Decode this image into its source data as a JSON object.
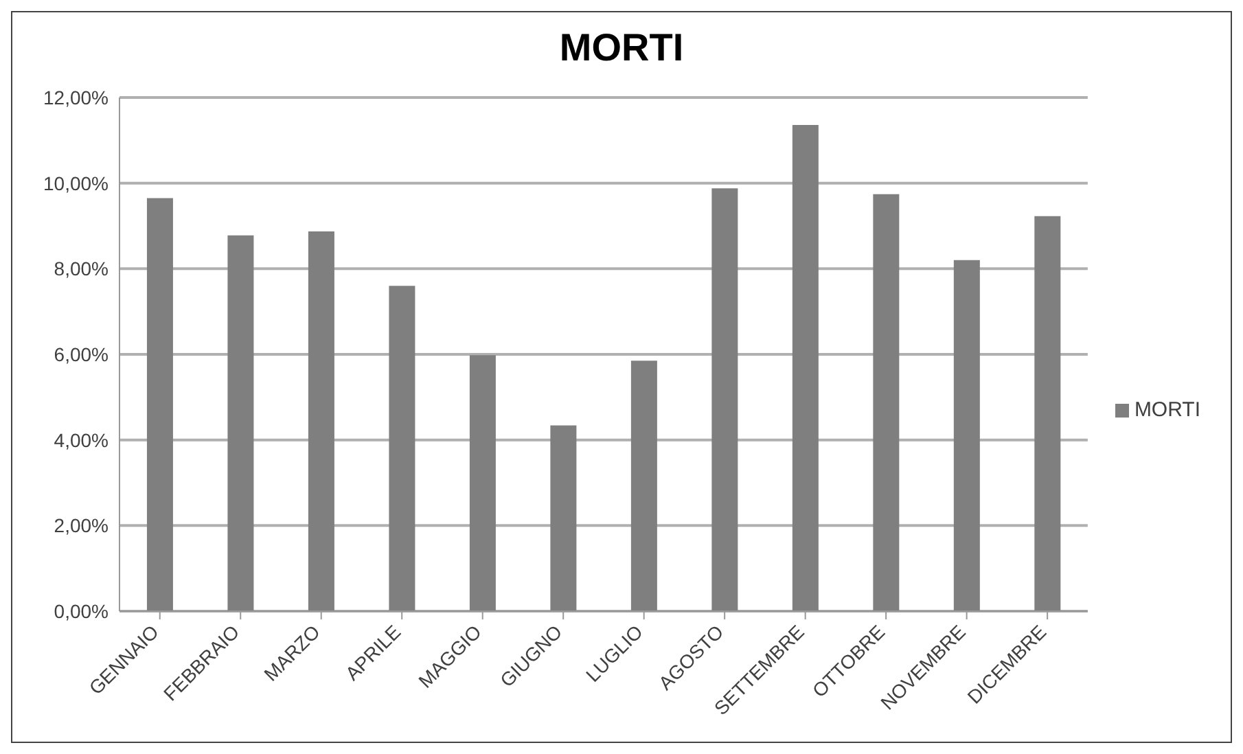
{
  "chart_data": {
    "type": "bar",
    "title": "MORTI",
    "categories": [
      "GENNAIO",
      "FEBBRAIO",
      "MARZO",
      "APRILE",
      "MAGGIO",
      "GIUGNO",
      "LUGLIO",
      "AGOSTO",
      "SETTEMBRE",
      "OTTOBRE",
      "NOVEMBRE",
      "DICEMBRE"
    ],
    "series": [
      {
        "name": "MORTI",
        "color": "#7f7f7f",
        "values": [
          9.65,
          8.78,
          8.87,
          7.6,
          5.98,
          4.34,
          5.85,
          9.88,
          11.36,
          9.74,
          8.2,
          9.23
        ]
      }
    ],
    "ylim": [
      0,
      12
    ],
    "yticks": [
      {
        "value": 0,
        "label": "0,00%"
      },
      {
        "value": 2,
        "label": "2,00%"
      },
      {
        "value": 4,
        "label": "4,00%"
      },
      {
        "value": 6,
        "label": "6,00%"
      },
      {
        "value": 8,
        "label": "8,00%"
      },
      {
        "value": 10,
        "label": "10,00%"
      },
      {
        "value": 12,
        "label": "12,00%"
      }
    ],
    "grid": "y",
    "legend": "right"
  }
}
